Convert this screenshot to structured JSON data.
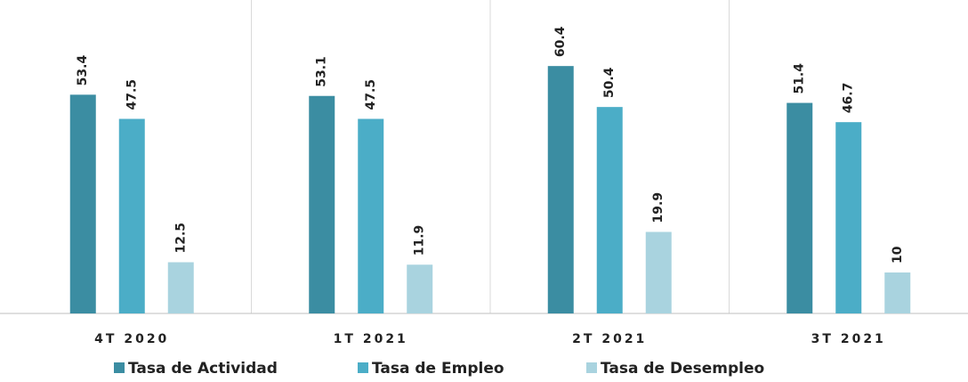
{
  "chart_data": {
    "type": "bar",
    "categories": [
      "4T 2020",
      "1T 2021",
      "2T 2021",
      "3T 2021"
    ],
    "series": [
      {
        "name": "Tasa de Actividad",
        "color": "#3b8da2",
        "values": [
          53.4,
          53.1,
          60.4,
          51.4
        ]
      },
      {
        "name": "Tasa de Empleo",
        "color": "#4badc7",
        "values": [
          47.5,
          47.5,
          50.4,
          46.7
        ]
      },
      {
        "name": "Tasa de Desempleo",
        "color": "#a9d3df",
        "values": [
          12.5,
          11.9,
          19.9,
          10
        ]
      }
    ],
    "ylim": [
      0,
      70
    ]
  }
}
